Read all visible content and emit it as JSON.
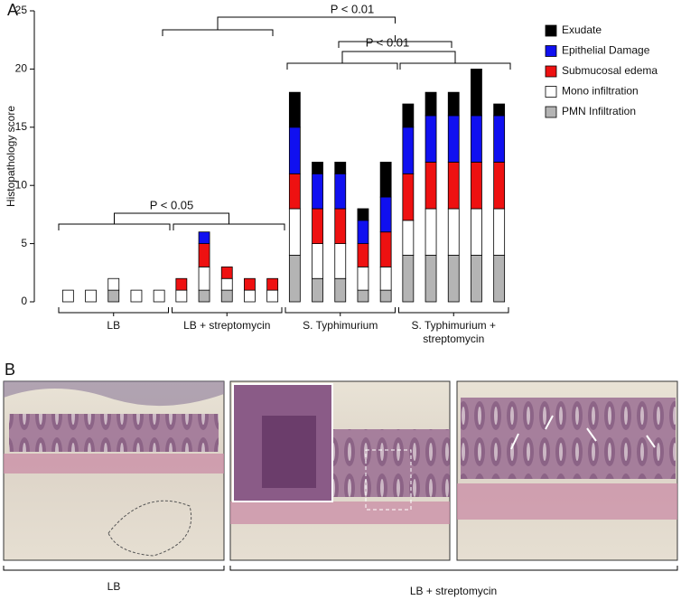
{
  "panel_a": {
    "label": "A"
  },
  "chart_data": {
    "type": "stacked-bar",
    "y_label": "Histopathology score",
    "ylim": [
      0,
      25
    ],
    "yticks": [
      0,
      5,
      10,
      15,
      20,
      25
    ],
    "categories": [
      null,
      null,
      null,
      null,
      null,
      null,
      null,
      null,
      null,
      null,
      null,
      null,
      null,
      null,
      null,
      null,
      null,
      null,
      null,
      null
    ],
    "group_labels": [
      "LB",
      "LB + streptomycin",
      "S. Typhimurium",
      "S. Typhimurium + streptomycin"
    ],
    "annotations": [
      "P < 0.05",
      "P < 0.01",
      "P < 0.01"
    ],
    "series": [
      {
        "name": "Exudate",
        "color": "#000000",
        "values": [
          0,
          0,
          0,
          0,
          0,
          0,
          0,
          0,
          0,
          0,
          3,
          1,
          1,
          1,
          3,
          2,
          2,
          2,
          4,
          1
        ]
      },
      {
        "name": "Epithelial Damage",
        "color": "#1010f0",
        "values": [
          0,
          0,
          0,
          0,
          0,
          0,
          1,
          0,
          0,
          0,
          4,
          3,
          3,
          2,
          3,
          4,
          4,
          4,
          4,
          4
        ]
      },
      {
        "name": "Submucosal edema",
        "color": "#ee1111",
        "values": [
          0,
          0,
          0,
          0,
          0,
          1,
          2,
          1,
          1,
          1,
          3,
          3,
          3,
          2,
          3,
          4,
          4,
          4,
          4,
          4
        ]
      },
      {
        "name": "Mono infiltration",
        "color": "#ffffff",
        "values": [
          1,
          1,
          1,
          1,
          1,
          1,
          2,
          1,
          1,
          1,
          4,
          3,
          3,
          2,
          2,
          3,
          4,
          4,
          4,
          4
        ]
      },
      {
        "name": "PMN Infiltration",
        "color": "#b4b4b4",
        "values": [
          0,
          0,
          1,
          0,
          0,
          0,
          1,
          1,
          0,
          0,
          4,
          2,
          2,
          1,
          1,
          4,
          4,
          4,
          4,
          4
        ]
      }
    ]
  },
  "panel_b": {
    "label": "B",
    "groups": [
      "LB",
      "LB + streptomycin"
    ]
  }
}
